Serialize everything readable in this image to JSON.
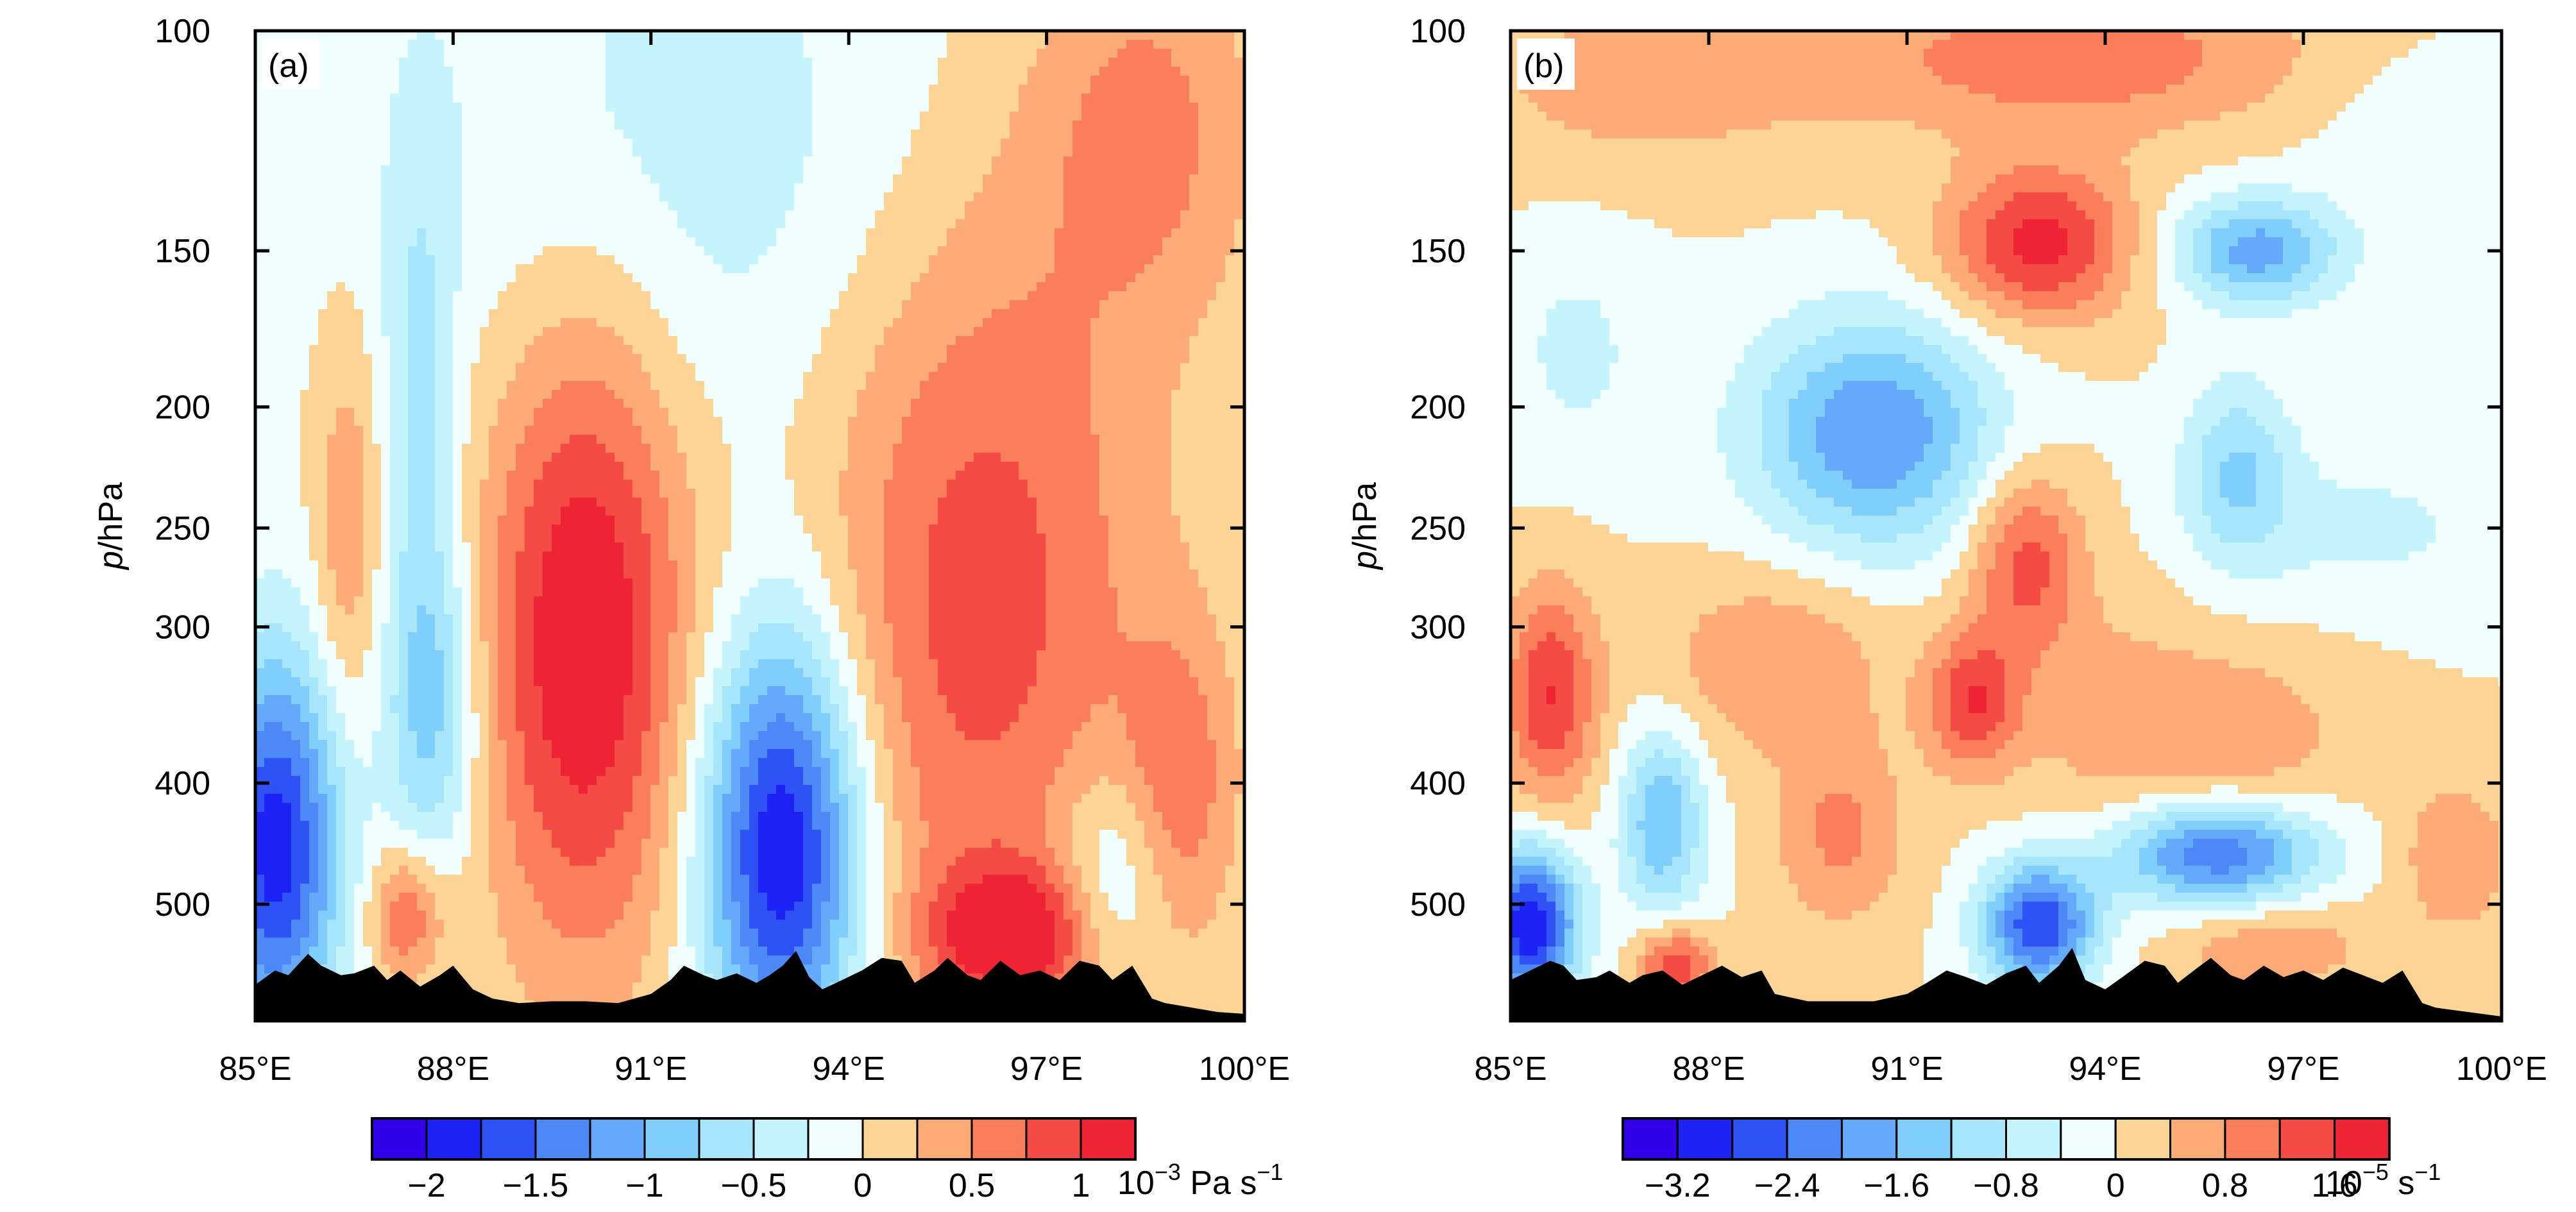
{
  "chart_data": [
    {
      "type": "heatmap",
      "panel_label": "(a)",
      "ylabel_italic": "p",
      "ylabel_rest": "/hPa",
      "x_ticks": [
        "85°E",
        "88°E",
        "91°E",
        "94°E",
        "97°E",
        "100°E"
      ],
      "x_values": [
        85,
        88,
        91,
        94,
        97,
        100
      ],
      "xlim": [
        85,
        100
      ],
      "y_ticks": [
        "100",
        "150",
        "200",
        "250",
        "300",
        "400",
        "500"
      ],
      "y_values": [
        100,
        150,
        200,
        250,
        300,
        400,
        500
      ],
      "ylim": [
        620,
        100
      ],
      "y_scale": "log",
      "colorbar": {
        "levels": [
          -2.25,
          -2,
          -1.75,
          -1.5,
          -1.25,
          -1,
          -0.75,
          -0.5,
          -0.25,
          0,
          0.25,
          0.5,
          0.75,
          1,
          1.25
        ],
        "tick_labels": [
          "−2",
          "−1.5",
          "−1",
          "−0.5",
          "0",
          "0.5",
          "1"
        ],
        "tick_values": [
          -2,
          -1.5,
          -1,
          -0.5,
          0,
          0.5,
          1
        ],
        "unit_base": "10",
        "unit_exp": "−3",
        "unit_rest": " Pa s",
        "unit_exp2": "−1"
      },
      "features": [
        {
          "x": 90.0,
          "y": 300,
          "amp": 1.3,
          "sx": 1.1,
          "sy": 0.42
        },
        {
          "x": 93.0,
          "y": 450,
          "amp": -2.1,
          "sx": 0.85,
          "sy": 0.28
        },
        {
          "x": 85.3,
          "y": 450,
          "amp": -1.9,
          "sx": 0.7,
          "sy": 0.25
        },
        {
          "x": 96.0,
          "y": 270,
          "amp": 0.9,
          "sx": 1.8,
          "sy": 0.55
        },
        {
          "x": 96.5,
          "y": 530,
          "amp": 1.1,
          "sx": 0.9,
          "sy": 0.09
        },
        {
          "x": 87.3,
          "y": 510,
          "amp": 0.8,
          "sx": 0.4,
          "sy": 0.09
        },
        {
          "x": 86.4,
          "y": 250,
          "amp": 0.5,
          "sx": 0.35,
          "sy": 0.25
        },
        {
          "x": 87.7,
          "y": 350,
          "amp": -0.8,
          "sx": 0.5,
          "sy": 0.22
        },
        {
          "x": 87.5,
          "y": 200,
          "amp": -0.5,
          "sx": 0.4,
          "sy": 0.4
        },
        {
          "x": 98.5,
          "y": 120,
          "amp": 0.6,
          "sx": 1.2,
          "sy": 0.25
        },
        {
          "x": 99.0,
          "y": 400,
          "amp": 0.6,
          "sx": 0.6,
          "sy": 0.2
        },
        {
          "x": 98.0,
          "y": 480,
          "amp": -0.6,
          "sx": 0.6,
          "sy": 0.15
        },
        {
          "x": 92.0,
          "y": 130,
          "amp": -0.4,
          "sx": 3.5,
          "sy": 0.4
        }
      ],
      "terrain": [
        [
          85.0,
          580
        ],
        [
          85.3,
          565
        ],
        [
          85.5,
          570
        ],
        [
          85.8,
          548
        ],
        [
          86.0,
          560
        ],
        [
          86.3,
          570
        ],
        [
          86.5,
          568
        ],
        [
          86.8,
          560
        ],
        [
          87.0,
          575
        ],
        [
          87.2,
          565
        ],
        [
          87.5,
          582
        ],
        [
          87.8,
          570
        ],
        [
          88.0,
          560
        ],
        [
          88.3,
          585
        ],
        [
          88.6,
          595
        ],
        [
          89.0,
          600
        ],
        [
          89.5,
          598
        ],
        [
          90.0,
          598
        ],
        [
          90.5,
          600
        ],
        [
          91.0,
          590
        ],
        [
          91.3,
          575
        ],
        [
          91.5,
          560
        ],
        [
          91.8,
          570
        ],
        [
          92.0,
          575
        ],
        [
          92.3,
          568
        ],
        [
          92.6,
          578
        ],
        [
          92.8,
          570
        ],
        [
          93.0,
          560
        ],
        [
          93.2,
          545
        ],
        [
          93.4,
          572
        ],
        [
          93.6,
          585
        ],
        [
          93.9,
          575
        ],
        [
          94.2,
          565
        ],
        [
          94.5,
          552
        ],
        [
          94.8,
          555
        ],
        [
          95.0,
          578
        ],
        [
          95.3,
          565
        ],
        [
          95.5,
          552
        ],
        [
          95.8,
          570
        ],
        [
          96.0,
          575
        ],
        [
          96.3,
          555
        ],
        [
          96.6,
          570
        ],
        [
          96.9,
          565
        ],
        [
          97.2,
          575
        ],
        [
          97.5,
          555
        ],
        [
          97.8,
          560
        ],
        [
          98.0,
          575
        ],
        [
          98.3,
          560
        ],
        [
          98.6,
          595
        ],
        [
          98.8,
          600
        ],
        [
          99.2,
          605
        ],
        [
          99.6,
          610
        ],
        [
          100.0,
          612
        ]
      ]
    },
    {
      "type": "heatmap",
      "panel_label": "(b)",
      "ylabel_italic": "p",
      "ylabel_rest": "/hPa",
      "x_ticks": [
        "85°E",
        "88°E",
        "91°E",
        "94°E",
        "97°E",
        "100°E"
      ],
      "x_values": [
        85,
        88,
        91,
        94,
        97,
        100
      ],
      "xlim": [
        85,
        100
      ],
      "y_ticks": [
        "100",
        "150",
        "200",
        "250",
        "300",
        "400",
        "500"
      ],
      "y_values": [
        100,
        150,
        200,
        250,
        300,
        400,
        500
      ],
      "ylim": [
        620,
        100
      ],
      "y_scale": "log",
      "colorbar": {
        "levels": [
          -3.6,
          -3.2,
          -2.8,
          -2.4,
          -2.0,
          -1.6,
          -1.2,
          -0.8,
          -0.4,
          0,
          0.4,
          0.8,
          1.2,
          1.6,
          2.0
        ],
        "tick_labels": [
          "−3.2",
          "−2.4",
          "−1.6",
          "−0.8",
          "0",
          "0.8",
          "1.6"
        ],
        "tick_values": [
          -3.2,
          -2.4,
          -1.6,
          -0.8,
          0,
          0.8,
          1.6
        ],
        "unit_base": "10",
        "unit_exp": "−5",
        "unit_rest": " s",
        "unit_exp2": "−1"
      },
      "features": [
        {
          "x": 93.0,
          "y": 148,
          "amp": 1.8,
          "sx": 1.0,
          "sy": 0.1
        },
        {
          "x": 93.5,
          "y": 105,
          "amp": 1.1,
          "sx": 2.5,
          "sy": 0.1
        },
        {
          "x": 87.0,
          "y": 110,
          "amp": 0.6,
          "sx": 2.0,
          "sy": 0.12
        },
        {
          "x": 90.5,
          "y": 210,
          "amp": -2.0,
          "sx": 1.3,
          "sy": 0.15
        },
        {
          "x": 96.3,
          "y": 150,
          "amp": -1.8,
          "sx": 0.9,
          "sy": 0.07
        },
        {
          "x": 96.0,
          "y": 225,
          "amp": -1.2,
          "sx": 0.6,
          "sy": 0.12
        },
        {
          "x": 92.8,
          "y": 265,
          "amp": 1.4,
          "sx": 0.6,
          "sy": 0.12
        },
        {
          "x": 92.0,
          "y": 345,
          "amp": 1.5,
          "sx": 0.5,
          "sy": 0.09
        },
        {
          "x": 85.6,
          "y": 340,
          "amp": 1.6,
          "sx": 0.5,
          "sy": 0.14
        },
        {
          "x": 89.0,
          "y": 320,
          "amp": 0.8,
          "sx": 1.2,
          "sy": 0.12
        },
        {
          "x": 90.0,
          "y": 440,
          "amp": 0.9,
          "sx": 0.7,
          "sy": 0.12
        },
        {
          "x": 87.3,
          "y": 430,
          "amp": -1.6,
          "sx": 0.45,
          "sy": 0.12
        },
        {
          "x": 95.7,
          "y": 455,
          "amp": -2.4,
          "sx": 1.1,
          "sy": 0.07
        },
        {
          "x": 93.0,
          "y": 520,
          "amp": -2.8,
          "sx": 0.6,
          "sy": 0.08
        },
        {
          "x": 85.3,
          "y": 520,
          "amp": -3.2,
          "sx": 0.5,
          "sy": 0.1
        },
        {
          "x": 87.5,
          "y": 560,
          "amp": 1.6,
          "sx": 0.4,
          "sy": 0.05
        },
        {
          "x": 96.5,
          "y": 540,
          "amp": 0.8,
          "sx": 1.0,
          "sy": 0.06
        },
        {
          "x": 99.3,
          "y": 460,
          "amp": 0.8,
          "sx": 0.6,
          "sy": 0.1
        },
        {
          "x": 96.0,
          "y": 370,
          "amp": 0.7,
          "sx": 1.2,
          "sy": 0.12
        },
        {
          "x": 94.0,
          "y": 350,
          "amp": 0.5,
          "sx": 1.0,
          "sy": 0.15
        },
        {
          "x": 98.0,
          "y": 250,
          "amp": -0.5,
          "sx": 1.5,
          "sy": 0.1
        },
        {
          "x": 86.0,
          "y": 180,
          "amp": -0.5,
          "sx": 0.8,
          "sy": 0.15
        },
        {
          "x": 99.0,
          "y": 120,
          "amp": -0.4,
          "sx": 1.2,
          "sy": 0.1
        }
      ],
      "terrain": [
        [
          85.0,
          575
        ],
        [
          85.3,
          565
        ],
        [
          85.6,
          555
        ],
        [
          85.8,
          560
        ],
        [
          86.0,
          575
        ],
        [
          86.3,
          572
        ],
        [
          86.5,
          565
        ],
        [
          86.8,
          578
        ],
        [
          87.0,
          570
        ],
        [
          87.3,
          565
        ],
        [
          87.6,
          580
        ],
        [
          87.9,
          570
        ],
        [
          88.2,
          560
        ],
        [
          88.5,
          572
        ],
        [
          88.8,
          565
        ],
        [
          89.0,
          590
        ],
        [
          89.5,
          598
        ],
        [
          90.0,
          598
        ],
        [
          90.5,
          598
        ],
        [
          91.0,
          590
        ],
        [
          91.3,
          578
        ],
        [
          91.6,
          565
        ],
        [
          91.9,
          572
        ],
        [
          92.2,
          580
        ],
        [
          92.5,
          568
        ],
        [
          92.8,
          560
        ],
        [
          93.0,
          578
        ],
        [
          93.3,
          560
        ],
        [
          93.5,
          542
        ],
        [
          93.7,
          575
        ],
        [
          94.0,
          585
        ],
        [
          94.3,
          570
        ],
        [
          94.6,
          555
        ],
        [
          94.9,
          560
        ],
        [
          95.1,
          578
        ],
        [
          95.4,
          562
        ],
        [
          95.6,
          552
        ],
        [
          95.9,
          570
        ],
        [
          96.1,
          575
        ],
        [
          96.4,
          560
        ],
        [
          96.7,
          572
        ],
        [
          97.0,
          565
        ],
        [
          97.3,
          575
        ],
        [
          97.6,
          562
        ],
        [
          97.9,
          570
        ],
        [
          98.2,
          578
        ],
        [
          98.5,
          565
        ],
        [
          98.8,
          600
        ],
        [
          99.0,
          605
        ],
        [
          99.3,
          608
        ],
        [
          99.7,
          612
        ],
        [
          100.0,
          615
        ]
      ]
    }
  ],
  "colors": {
    "ramp": [
      "#3200e8",
      "#1e23f5",
      "#2e52f5",
      "#4d88f7",
      "#64a9fa",
      "#80cefb",
      "#a6e5fb",
      "#c4f4fd",
      "#f0fefe",
      "#fcd495",
      "#fcaa76",
      "#fa7e5a",
      "#f54b45",
      "#ee2435"
    ],
    "terrain": "#000000"
  }
}
